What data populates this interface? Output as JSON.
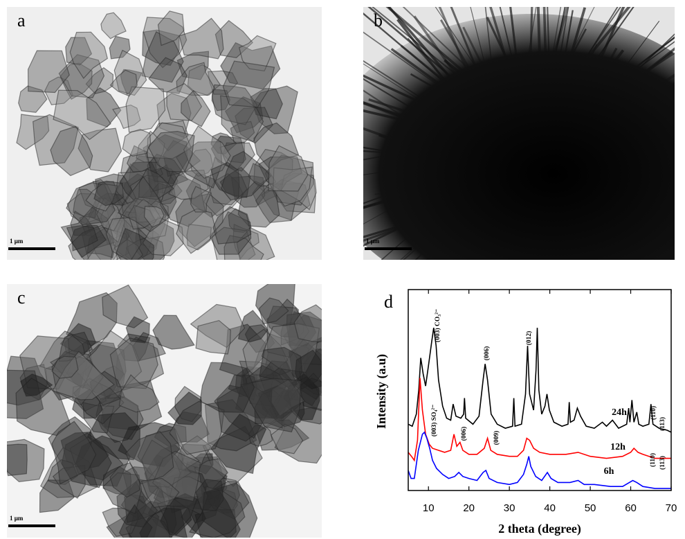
{
  "panels": [
    {
      "label": "a",
      "scale_bar": "1 μm"
    },
    {
      "label": "b",
      "scale_bar": "1 μm"
    },
    {
      "label": "c",
      "scale_bar": "1 μm"
    }
  ],
  "chart_data": {
    "type": "line",
    "panel_label": "d",
    "xlabel": "2 theta (degree)",
    "ylabel": "Intensity (a.u)",
    "xlim": [
      5,
      70
    ],
    "xticks": [
      10,
      20,
      30,
      40,
      50,
      60,
      70
    ],
    "ylim": [
      0,
      100
    ],
    "series": [
      {
        "name": "24h",
        "color": "#000000",
        "x": [
          5,
          6,
          7,
          7.6,
          8.1,
          8.7,
          9.3,
          10,
          10.8,
          11.3,
          11.9,
          12.5,
          13.5,
          14.5,
          15.5,
          16.1,
          16.8,
          18,
          18.7,
          18.9,
          19.2,
          21,
          22.5,
          23.5,
          24,
          24.6,
          25.5,
          27,
          29,
          30.8,
          31.1,
          31.4,
          33,
          34,
          34.5,
          35,
          36,
          36.6,
          36.9,
          37.3,
          38,
          38.8,
          39.3,
          39.9,
          41,
          43,
          44.5,
          44.8,
          45.1,
          46,
          46.8,
          47.6,
          49,
          51,
          53,
          54,
          55.5,
          57,
          59,
          59.5,
          59.8,
          60.3,
          60.8,
          61.5,
          62,
          63,
          64.5,
          65,
          65.5,
          67,
          69,
          70
        ],
        "values": [
          33,
          32,
          38,
          50,
          66,
          58,
          52,
          62,
          74,
          81,
          72,
          55,
          42,
          36,
          35,
          43,
          37,
          36,
          38,
          46,
          36,
          33,
          37,
          55,
          63,
          55,
          38,
          33,
          31,
          32,
          46,
          32,
          33,
          48,
          72,
          48,
          40,
          60,
          81,
          50,
          38,
          42,
          48,
          40,
          34,
          32,
          33,
          44,
          34,
          35,
          41,
          37,
          32,
          31,
          34,
          32,
          35,
          31,
          33,
          41,
          34,
          45,
          34,
          39,
          33,
          32,
          33,
          43,
          33,
          31,
          30,
          29
        ]
      },
      {
        "name": "12h",
        "color": "#ff0000",
        "x": [
          5,
          5.8,
          6.5,
          7.3,
          7.9,
          8.5,
          9.3,
          10.2,
          11,
          12.5,
          14,
          15.5,
          16.3,
          17,
          17.8,
          18.5,
          20,
          22,
          23.8,
          24.6,
          25.4,
          27,
          30,
          32,
          33.5,
          34.3,
          35,
          36,
          37.5,
          40,
          44,
          47,
          50,
          54,
          58,
          60,
          60.8,
          61.8,
          63,
          66,
          70
        ],
        "values": [
          19,
          17,
          15,
          25,
          56,
          40,
          28,
          23,
          21,
          20,
          19,
          20,
          28,
          22,
          24,
          20,
          18,
          18,
          21,
          26,
          20,
          18,
          17,
          17,
          20,
          26,
          25,
          21,
          19,
          18,
          18,
          19,
          17,
          16,
          17,
          19,
          21,
          19,
          18,
          16,
          16
        ]
      },
      {
        "name": "6h",
        "color": "#0000ff",
        "x": [
          5,
          5.7,
          6.5,
          7.5,
          8.5,
          9,
          9.6,
          10.3,
          11,
          12,
          13.5,
          15,
          16.5,
          17.5,
          18.5,
          20,
          22,
          23.5,
          24.2,
          25,
          27,
          30,
          32,
          33.5,
          34.3,
          34.8,
          35.3,
          36.5,
          38,
          39.4,
          40.3,
          42,
          45,
          47,
          48.5,
          51,
          55,
          58,
          60.5,
          61.5,
          63,
          66,
          70
        ],
        "values": [
          10,
          6,
          6,
          20,
          28,
          29,
          26,
          21,
          15,
          11,
          8,
          6,
          7,
          9,
          7,
          6,
          5,
          9,
          10,
          6,
          4,
          3,
          4,
          8,
          13,
          17,
          12,
          7,
          5,
          9,
          6,
          4,
          4,
          5,
          3,
          3,
          2,
          2,
          5,
          4,
          2,
          1,
          1
        ]
      }
    ],
    "annotations": [
      "(003) CO₃²⁻",
      "(006)",
      "(012)",
      "(110)",
      "(113)",
      "(003) SO₄²⁻",
      "(006)",
      "(009)",
      "(110)",
      "(113)"
    ]
  }
}
